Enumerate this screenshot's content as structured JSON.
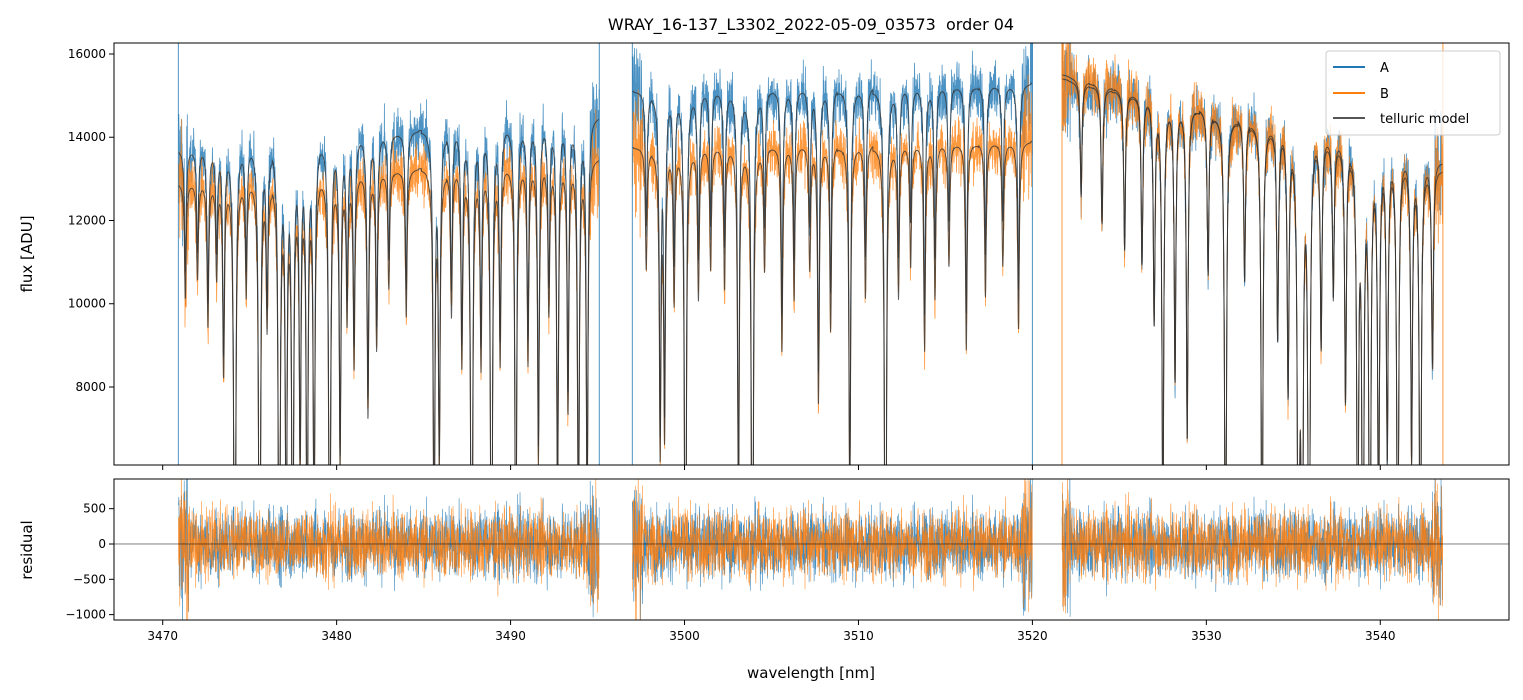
{
  "chart_data": {
    "type": "line",
    "title": "WRAY_16-137_L3302_2022-05-09_03573  order 04",
    "xlabel": "wavelength [nm]",
    "panels": [
      {
        "name": "spectrum",
        "ylabel": "flux [ADU]",
        "xlim": [
          3467.2,
          3547.4
        ],
        "ylim": [
          6126,
          16264
        ],
        "xticks": [
          3470,
          3480,
          3490,
          3500,
          3510,
          3520,
          3530,
          3540
        ],
        "yticks": [
          8000,
          10000,
          12000,
          14000,
          16000
        ],
        "ytick_labels": [
          "8000",
          "10000",
          "12000",
          "14000",
          "16000"
        ],
        "legend": {
          "placement": "top-right",
          "entries": [
            "A",
            "B",
            "telluric model"
          ]
        }
      },
      {
        "name": "residual",
        "ylabel": "residual",
        "xlim": [
          3467.2,
          3547.4
        ],
        "ylim": [
          -1076,
          920
        ],
        "xticks": [
          3470,
          3480,
          3490,
          3500,
          3510,
          3520,
          3530,
          3540
        ],
        "xtick_labels": [
          "3470",
          "3480",
          "3490",
          "3500",
          "3510",
          "3520",
          "3530",
          "3540"
        ],
        "yticks": [
          -1000,
          -500,
          0,
          500
        ],
        "ytick_labels": [
          "−1000",
          "−500",
          "0",
          "500"
        ],
        "noise_rms": 250
      }
    ],
    "series": [
      {
        "name": "A",
        "color": "#1f77b4"
      },
      {
        "name": "B",
        "color": "#ff7f0e"
      },
      {
        "name": "telluric model",
        "color": "#333333"
      }
    ],
    "segments": [
      {
        "range": [
          3470.9,
          3495.1
        ],
        "A_continuum": [
          13700,
          14500
        ],
        "B_continuum": [
          12900,
          13500
        ]
      },
      {
        "range": [
          3497.0,
          3520.0
        ],
        "A_continuum": [
          15100,
          15300
        ],
        "B_continuum": [
          13750,
          13900
        ]
      },
      {
        "range": [
          3521.7,
          3543.6
        ],
        "A_continuum": [
          15400,
          13400
        ],
        "B_continuum": [
          15500,
          13200
        ]
      }
    ],
    "absorption_lines": [
      [
        3471.3,
        0.12
      ],
      [
        3472.0,
        0.1
      ],
      [
        3472.6,
        0.15
      ],
      [
        3473.1,
        0.1
      ],
      [
        3473.5,
        0.2
      ],
      [
        3474.14,
        0.6
      ],
      [
        3474.8,
        0.12
      ],
      [
        3475.57,
        0.58
      ],
      [
        3476.0,
        0.15
      ],
      [
        3476.7,
        0.55
      ],
      [
        3477.1,
        0.4
      ],
      [
        3477.47,
        0.5
      ],
      [
        3477.9,
        0.3
      ],
      [
        3478.3,
        0.42
      ],
      [
        3478.7,
        0.38
      ],
      [
        3479.6,
        0.52
      ],
      [
        3480.2,
        0.3
      ],
      [
        3480.6,
        0.15
      ],
      [
        3481.0,
        0.2
      ],
      [
        3481.8,
        0.25
      ],
      [
        3482.3,
        0.18
      ],
      [
        3483.0,
        0.12
      ],
      [
        3484.0,
        0.15
      ],
      [
        3485.6,
        0.4
      ],
      [
        3485.9,
        0.3
      ],
      [
        3486.6,
        0.15
      ],
      [
        3487.2,
        0.2
      ],
      [
        3487.76,
        0.6
      ],
      [
        3488.3,
        0.2
      ],
      [
        3488.9,
        0.55
      ],
      [
        3489.4,
        0.2
      ],
      [
        3490.3,
        0.45
      ],
      [
        3491.0,
        0.2
      ],
      [
        3491.6,
        0.3
      ],
      [
        3492.2,
        0.15
      ],
      [
        3492.7,
        0.35
      ],
      [
        3493.3,
        0.25
      ],
      [
        3493.9,
        0.4
      ],
      [
        3494.4,
        0.35
      ],
      [
        3497.8,
        0.12
      ],
      [
        3498.6,
        0.3
      ],
      [
        3498.85,
        0.28
      ],
      [
        3499.4,
        0.15
      ],
      [
        3500.05,
        0.56
      ],
      [
        3500.8,
        0.15
      ],
      [
        3501.5,
        0.12
      ],
      [
        3502.3,
        0.14
      ],
      [
        3503.1,
        0.36
      ],
      [
        3503.9,
        0.6
      ],
      [
        3504.6,
        0.12
      ],
      [
        3505.6,
        0.2
      ],
      [
        3506.3,
        0.15
      ],
      [
        3507.2,
        0.12
      ],
      [
        3507.7,
        0.25
      ],
      [
        3508.4,
        0.18
      ],
      [
        3509.5,
        0.35
      ],
      [
        3510.4,
        0.15
      ],
      [
        3511.55,
        0.6
      ],
      [
        3512.3,
        0.15
      ],
      [
        3513.0,
        0.12
      ],
      [
        3513.8,
        0.2
      ],
      [
        3514.4,
        0.15
      ],
      [
        3515.2,
        0.12
      ],
      [
        3516.2,
        0.2
      ],
      [
        3517.3,
        0.15
      ],
      [
        3518.3,
        0.12
      ],
      [
        3519.2,
        0.18
      ],
      [
        3522.8,
        0.1
      ],
      [
        3524.0,
        0.12
      ],
      [
        3525.3,
        0.14
      ],
      [
        3526.3,
        0.15
      ],
      [
        3527.0,
        0.2
      ],
      [
        3527.5,
        0.4
      ],
      [
        3528.2,
        0.25
      ],
      [
        3528.9,
        0.3
      ],
      [
        3530.1,
        0.15
      ],
      [
        3531.1,
        0.5
      ],
      [
        3532.2,
        0.15
      ],
      [
        3533.2,
        0.45
      ],
      [
        3534.1,
        0.2
      ],
      [
        3534.7,
        0.25
      ],
      [
        3535.3,
        0.62
      ],
      [
        3535.5,
        0.6
      ],
      [
        3535.9,
        0.6
      ],
      [
        3536.6,
        0.2
      ],
      [
        3537.3,
        0.15
      ],
      [
        3538.0,
        0.25
      ],
      [
        3538.7,
        0.45
      ],
      [
        3539.0,
        0.55
      ],
      [
        3539.4,
        0.55
      ],
      [
        3539.9,
        0.4
      ],
      [
        3540.4,
        0.3
      ],
      [
        3541.0,
        0.5
      ],
      [
        3541.8,
        0.3
      ],
      [
        3542.3,
        0.5
      ],
      [
        3543.0,
        0.2
      ]
    ]
  }
}
